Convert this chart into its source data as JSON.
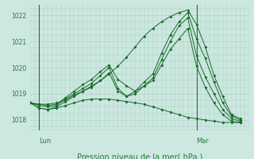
{
  "bg_color": "#cce8e0",
  "grid_color": "#aaccC4",
  "line_color": "#1a6b2a",
  "text_color": "#2a7a3a",
  "axis_color": "#3a6a3a",
  "xlabel": "Pression niveau de la mer( hPa )",
  "ylim": [
    1017.6,
    1022.4
  ],
  "yticks": [
    1018,
    1019,
    1020,
    1021,
    1022
  ],
  "xlim": [
    0,
    50
  ],
  "lun_x": 2,
  "mar_x": 38,
  "series": [
    {
      "x": [
        0,
        2,
        4,
        6,
        8,
        10,
        12,
        14,
        16,
        18,
        20,
        22,
        24,
        26,
        28,
        30,
        32,
        34,
        36,
        38,
        40,
        42,
        44,
        46,
        48
      ],
      "y": [
        1018.65,
        1018.6,
        1018.6,
        1018.65,
        1018.75,
        1018.95,
        1019.1,
        1019.25,
        1019.5,
        1019.75,
        1020.05,
        1020.4,
        1020.8,
        1021.2,
        1021.5,
        1021.75,
        1021.95,
        1022.1,
        1022.2,
        1021.65,
        1020.8,
        1019.7,
        1018.9,
        1018.2,
        1018.05
      ]
    },
    {
      "x": [
        0,
        2,
        4,
        6,
        8,
        10,
        12,
        14,
        16,
        18,
        20,
        22,
        24,
        26,
        28,
        30,
        32,
        34,
        36,
        38,
        40,
        42,
        44,
        46,
        48
      ],
      "y": [
        1018.65,
        1018.6,
        1018.55,
        1018.6,
        1018.85,
        1019.1,
        1019.35,
        1019.55,
        1019.85,
        1020.1,
        1019.55,
        1019.3,
        1019.1,
        1019.45,
        1019.75,
        1020.55,
        1021.25,
        1021.75,
        1022.1,
        1021.1,
        1020.35,
        1019.45,
        1018.65,
        1018.15,
        1018.0
      ]
    },
    {
      "x": [
        0,
        2,
        4,
        6,
        8,
        10,
        12,
        14,
        16,
        18,
        20,
        22,
        24,
        26,
        28,
        30,
        32,
        34,
        36,
        38,
        40,
        42,
        44,
        46,
        48
      ],
      "y": [
        1018.65,
        1018.55,
        1018.5,
        1018.55,
        1018.8,
        1019.0,
        1019.2,
        1019.4,
        1019.7,
        1020.0,
        1019.2,
        1018.9,
        1019.0,
        1019.3,
        1019.6,
        1020.3,
        1021.0,
        1021.6,
        1021.9,
        1020.45,
        1019.65,
        1019.0,
        1018.4,
        1018.05,
        1017.95
      ]
    },
    {
      "x": [
        0,
        2,
        4,
        6,
        8,
        10,
        12,
        14,
        16,
        18,
        20,
        22,
        24,
        26,
        28,
        30,
        32,
        34,
        36,
        38,
        40,
        42,
        44,
        46,
        48
      ],
      "y": [
        1018.65,
        1018.45,
        1018.4,
        1018.5,
        1018.7,
        1018.9,
        1019.1,
        1019.3,
        1019.5,
        1019.8,
        1019.1,
        1018.9,
        1019.1,
        1019.3,
        1019.5,
        1020.1,
        1020.7,
        1021.1,
        1021.5,
        1020.05,
        1019.25,
        1018.65,
        1018.2,
        1017.95,
        1017.9
      ]
    },
    {
      "x": [
        0,
        2,
        4,
        6,
        8,
        10,
        12,
        14,
        16,
        18,
        20,
        22,
        24,
        26,
        28,
        30,
        32,
        34,
        36,
        38,
        40,
        42,
        44,
        46,
        48
      ],
      "y": [
        1018.65,
        1018.45,
        1018.4,
        1018.45,
        1018.55,
        1018.65,
        1018.75,
        1018.8,
        1018.8,
        1018.8,
        1018.75,
        1018.7,
        1018.65,
        1018.6,
        1018.5,
        1018.4,
        1018.3,
        1018.2,
        1018.1,
        1018.05,
        1018.0,
        1017.95,
        1017.9,
        1017.9,
        1017.9
      ]
    }
  ],
  "marker_size": 2.0,
  "line_width": 0.7
}
